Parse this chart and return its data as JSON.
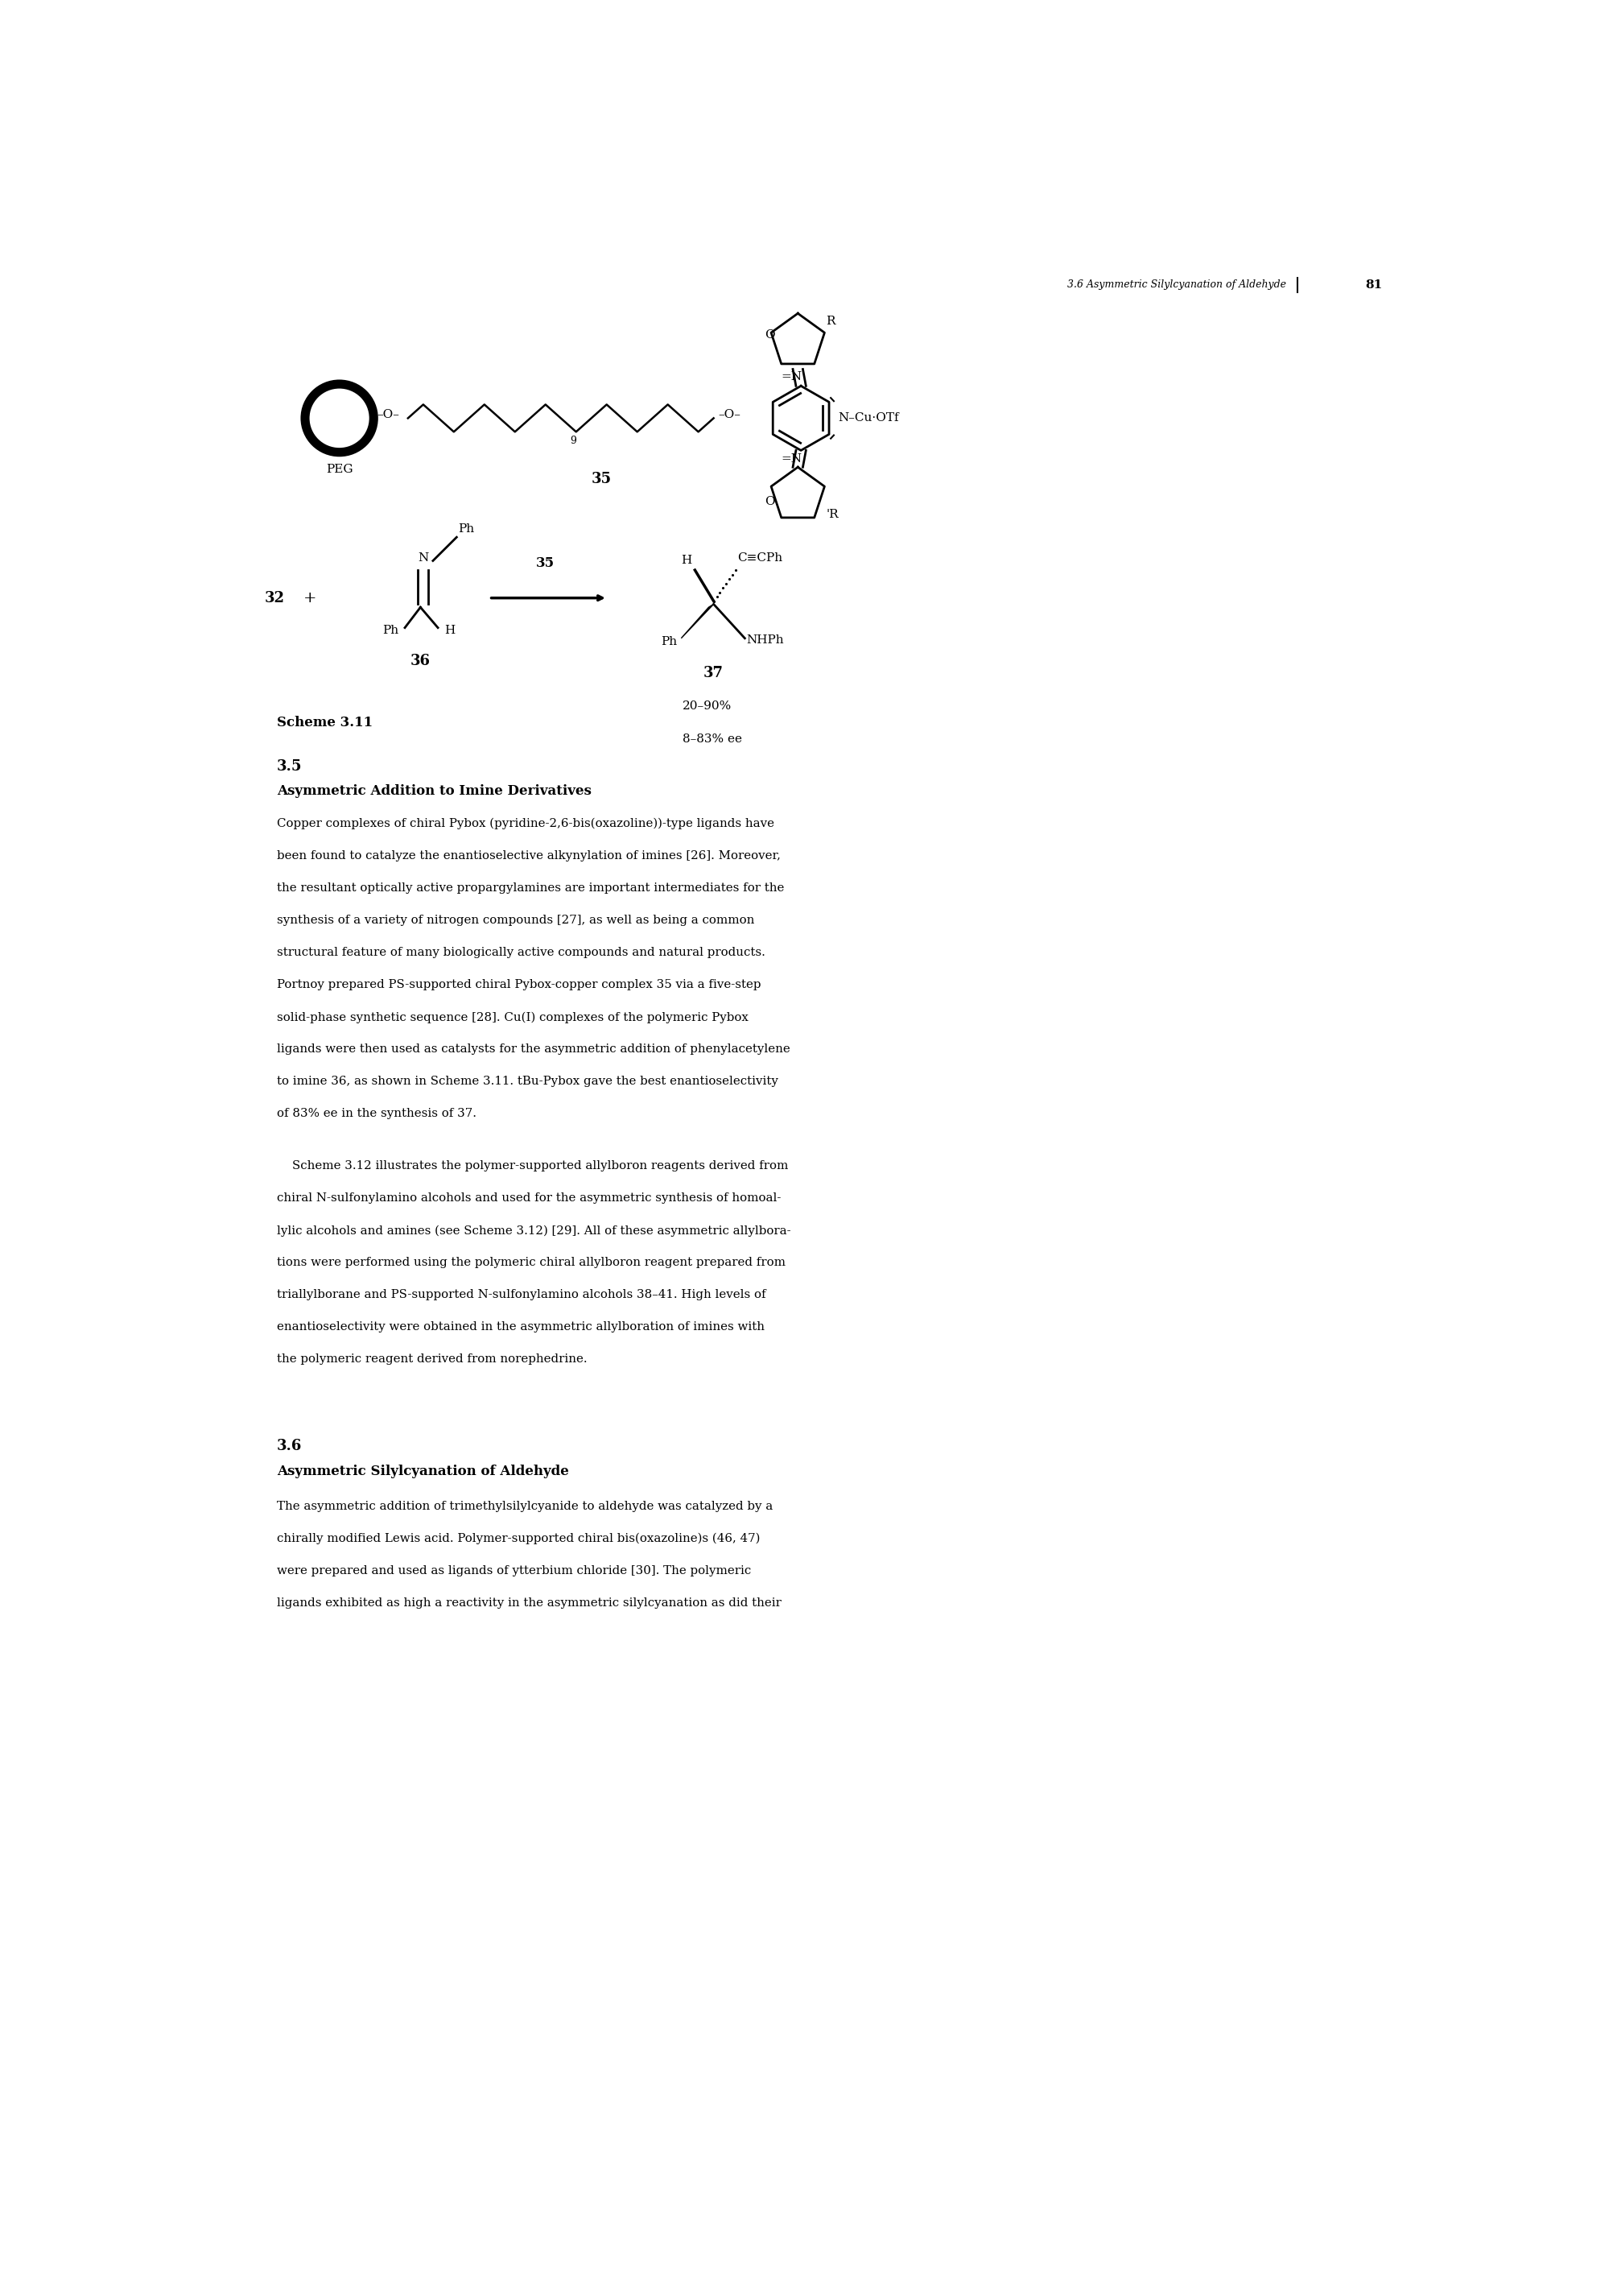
{
  "page_header": "3.6 Asymmetric Silylcyanation of Aldehyde",
  "page_number": "81",
  "scheme_label": "Scheme 3.11",
  "section_number": "3.5",
  "section_title": "Asymmetric Addition to Imine Derivatives",
  "paragraph1_lines": [
    "Copper complexes of chiral Pybox (pyridine-2,6-bis(oxazoline))-type ligands have",
    "been found to catalyze the enantioselective alkynylation of imines [26]. Moreover,",
    "the resultant optically active propargylamines are important intermediates for the",
    "synthesis of a variety of nitrogen compounds [27], as well as being a common",
    "structural feature of many biologically active compounds and natural products.",
    "Portnoy prepared PS-supported chiral Pybox-copper complex 35 via a five-step",
    "solid-phase synthetic sequence [28]. Cu(I) complexes of the polymeric Pybox",
    "ligands were then used as catalysts for the asymmetric addition of phenylacetylene",
    "to imine 36, as shown in Scheme 3.11. tBu-Pybox gave the best enantioselectivity",
    "of 83% ee in the synthesis of 37."
  ],
  "paragraph2_lines": [
    "    Scheme 3.12 illustrates the polymer-supported allylboron reagents derived from",
    "chiral N-sulfonylamino alcohols and used for the asymmetric synthesis of homoal-",
    "lylic alcohols and amines (see Scheme 3.12) [29]. All of these asymmetric allylbora-",
    "tions were performed using the polymeric chiral allylboron reagent prepared from",
    "triallylborane and PS-supported N-sulfonylamino alcohols 38–41. High levels of",
    "enantioselectivity were obtained in the asymmetric allylboration of imines with",
    "the polymeric reagent derived from norephedrine."
  ],
  "section_number2": "3.6",
  "section_title2": "Asymmetric Silylcyanation of Aldehyde",
  "paragraph3_lines": [
    "The asymmetric addition of trimethylsilylcyanide to aldehyde was catalyzed by a",
    "chirally modified Lewis acid. Polymer-supported chiral bis(oxazoline)s (46, 47)",
    "were prepared and used as ligands of ytterbium chloride [30]. The polymeric",
    "ligands exhibited as high a reactivity in the asymmetric silylcyanation as did their"
  ],
  "yield_line1": "20–90%",
  "yield_line2": "8–83% ee",
  "background_color": "#ffffff",
  "text_color": "#000000",
  "fig_width": 20.09,
  "fig_height": 28.33
}
